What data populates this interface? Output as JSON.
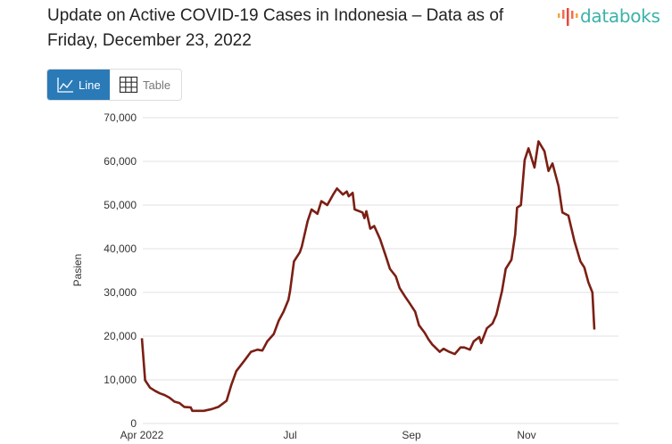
{
  "header": {
    "title": "Update on Active COVID-19 Cases in Indonesia – Data as of Friday, December 23, 2022",
    "logo_text": "databoks"
  },
  "view_toggle": {
    "line_label": "Line",
    "table_label": "Table",
    "active": "Line",
    "active_color": "#2a7ab8"
  },
  "chart_data": {
    "type": "line",
    "title": "",
    "xlabel": "",
    "ylabel": "Pasien",
    "ylim": [
      0,
      70000
    ],
    "yticks": [
      "0",
      "10,000",
      "20,000",
      "30,000",
      "40,000",
      "50,000",
      "60,000",
      "70,000"
    ],
    "xticks": [
      {
        "date": "2022-04-01",
        "label": "Apr 2022"
      },
      {
        "date": "2022-07-01",
        "label": "Jul"
      },
      {
        "date": "2022-09-01",
        "label": "Sep"
      },
      {
        "date": "2022-11-01",
        "label": "Nov"
      }
    ],
    "grid": true,
    "line_color": "#7b1f14",
    "series": [
      {
        "points": [
          [
            "2022-04-01",
            19500
          ],
          [
            "2022-04-03",
            9900
          ],
          [
            "2022-04-06",
            8200
          ],
          [
            "2022-04-09",
            7500
          ],
          [
            "2022-04-12",
            6900
          ],
          [
            "2022-04-15",
            6500
          ],
          [
            "2022-04-18",
            5900
          ],
          [
            "2022-04-21",
            5000
          ],
          [
            "2022-04-24",
            4700
          ],
          [
            "2022-04-27",
            3800
          ],
          [
            "2022-05-01",
            3700
          ],
          [
            "2022-05-02",
            2900
          ],
          [
            "2022-05-09",
            2900
          ],
          [
            "2022-05-14",
            3300
          ],
          [
            "2022-05-18",
            3800
          ],
          [
            "2022-05-23",
            5200
          ],
          [
            "2022-05-26",
            8900
          ],
          [
            "2022-05-29",
            12000
          ],
          [
            "2022-06-03",
            14400
          ],
          [
            "2022-06-07",
            16400
          ],
          [
            "2022-06-11",
            16900
          ],
          [
            "2022-06-14",
            16700
          ],
          [
            "2022-06-17",
            18800
          ],
          [
            "2022-06-21",
            20500
          ],
          [
            "2022-06-24",
            23500
          ],
          [
            "2022-06-27",
            25600
          ],
          [
            "2022-06-30",
            28300
          ],
          [
            "2022-07-01",
            30300
          ],
          [
            "2022-07-03",
            37100
          ],
          [
            "2022-07-06",
            39200
          ],
          [
            "2022-07-07",
            40500
          ],
          [
            "2022-07-10",
            46300
          ],
          [
            "2022-07-12",
            49000
          ],
          [
            "2022-07-15",
            48000
          ],
          [
            "2022-07-17",
            50900
          ],
          [
            "2022-07-20",
            50000
          ],
          [
            "2022-07-23",
            52400
          ],
          [
            "2022-07-25",
            53800
          ],
          [
            "2022-07-28",
            52400
          ],
          [
            "2022-07-30",
            53100
          ],
          [
            "2022-07-31",
            52000
          ],
          [
            "2022-08-02",
            52800
          ],
          [
            "2022-08-03",
            49000
          ],
          [
            "2022-08-07",
            48300
          ],
          [
            "2022-08-08",
            47000
          ],
          [
            "2022-08-09",
            48600
          ],
          [
            "2022-08-11",
            44600
          ],
          [
            "2022-08-13",
            45200
          ],
          [
            "2022-08-16",
            42200
          ],
          [
            "2022-08-19",
            38200
          ],
          [
            "2022-08-21",
            35400
          ],
          [
            "2022-08-24",
            33700
          ],
          [
            "2022-08-26",
            31000
          ],
          [
            "2022-08-29",
            28900
          ],
          [
            "2022-08-31",
            27600
          ],
          [
            "2022-09-03",
            25600
          ],
          [
            "2022-09-05",
            22500
          ],
          [
            "2022-09-08",
            20800
          ],
          [
            "2022-09-10",
            19300
          ],
          [
            "2022-09-12",
            18100
          ],
          [
            "2022-09-16",
            16400
          ],
          [
            "2022-09-18",
            17100
          ],
          [
            "2022-09-21",
            16400
          ],
          [
            "2022-09-24",
            15900
          ],
          [
            "2022-09-27",
            17400
          ],
          [
            "2022-09-29",
            17400
          ],
          [
            "2022-10-02",
            16900
          ],
          [
            "2022-10-04",
            18800
          ],
          [
            "2022-10-07",
            19800
          ],
          [
            "2022-10-08",
            18400
          ],
          [
            "2022-10-11",
            21800
          ],
          [
            "2022-10-14",
            22900
          ],
          [
            "2022-10-16",
            24900
          ],
          [
            "2022-10-19",
            30300
          ],
          [
            "2022-10-21",
            35400
          ],
          [
            "2022-10-24",
            37500
          ],
          [
            "2022-10-26",
            43300
          ],
          [
            "2022-10-27",
            49400
          ],
          [
            "2022-10-29",
            50000
          ],
          [
            "2022-10-31",
            60300
          ],
          [
            "2022-11-02",
            63000
          ],
          [
            "2022-11-05",
            58600
          ],
          [
            "2022-11-07",
            64600
          ],
          [
            "2022-11-10",
            62300
          ],
          [
            "2022-11-12",
            57800
          ],
          [
            "2022-11-14",
            59500
          ],
          [
            "2022-11-17",
            54400
          ],
          [
            "2022-11-19",
            48300
          ],
          [
            "2022-11-22",
            47600
          ],
          [
            "2022-11-25",
            41800
          ],
          [
            "2022-11-28",
            37100
          ],
          [
            "2022-11-30",
            35700
          ],
          [
            "2022-12-02",
            32300
          ],
          [
            "2022-12-04",
            30000
          ],
          [
            "2022-12-05",
            21500
          ]
        ]
      }
    ]
  }
}
